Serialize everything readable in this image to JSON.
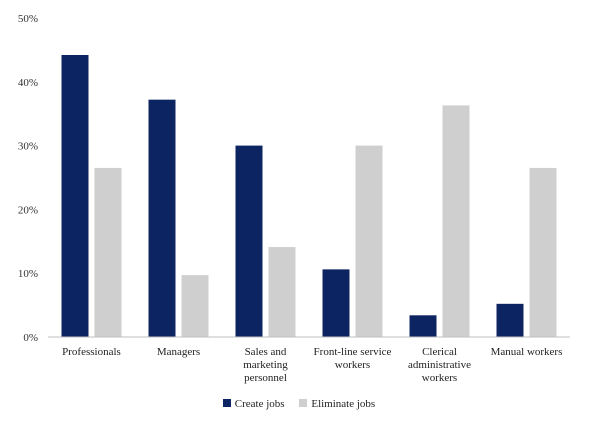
{
  "chart_data": {
    "type": "bar",
    "categories": [
      [
        "Professionals"
      ],
      [
        "Managers"
      ],
      [
        "Sales and",
        "marketing",
        "personnel"
      ],
      [
        "Front-line service",
        "workers"
      ],
      [
        "Clerical",
        "administrative",
        "workers"
      ],
      [
        "Manual workers"
      ]
    ],
    "series": [
      {
        "name": "Create jobs",
        "color": "#0c2461",
        "values": [
          44.2,
          37.2,
          30.0,
          10.6,
          3.4,
          5.2
        ]
      },
      {
        "name": "Eliminate jobs",
        "color": "#cfcfcf",
        "values": [
          26.5,
          9.7,
          14.1,
          30.0,
          36.3,
          26.5
        ]
      }
    ],
    "ylim": [
      0,
      50
    ],
    "yticks": [
      "0%",
      "10%",
      "20%",
      "30%",
      "40%",
      "50%"
    ],
    "grid": false,
    "legend_position": "bottom"
  }
}
